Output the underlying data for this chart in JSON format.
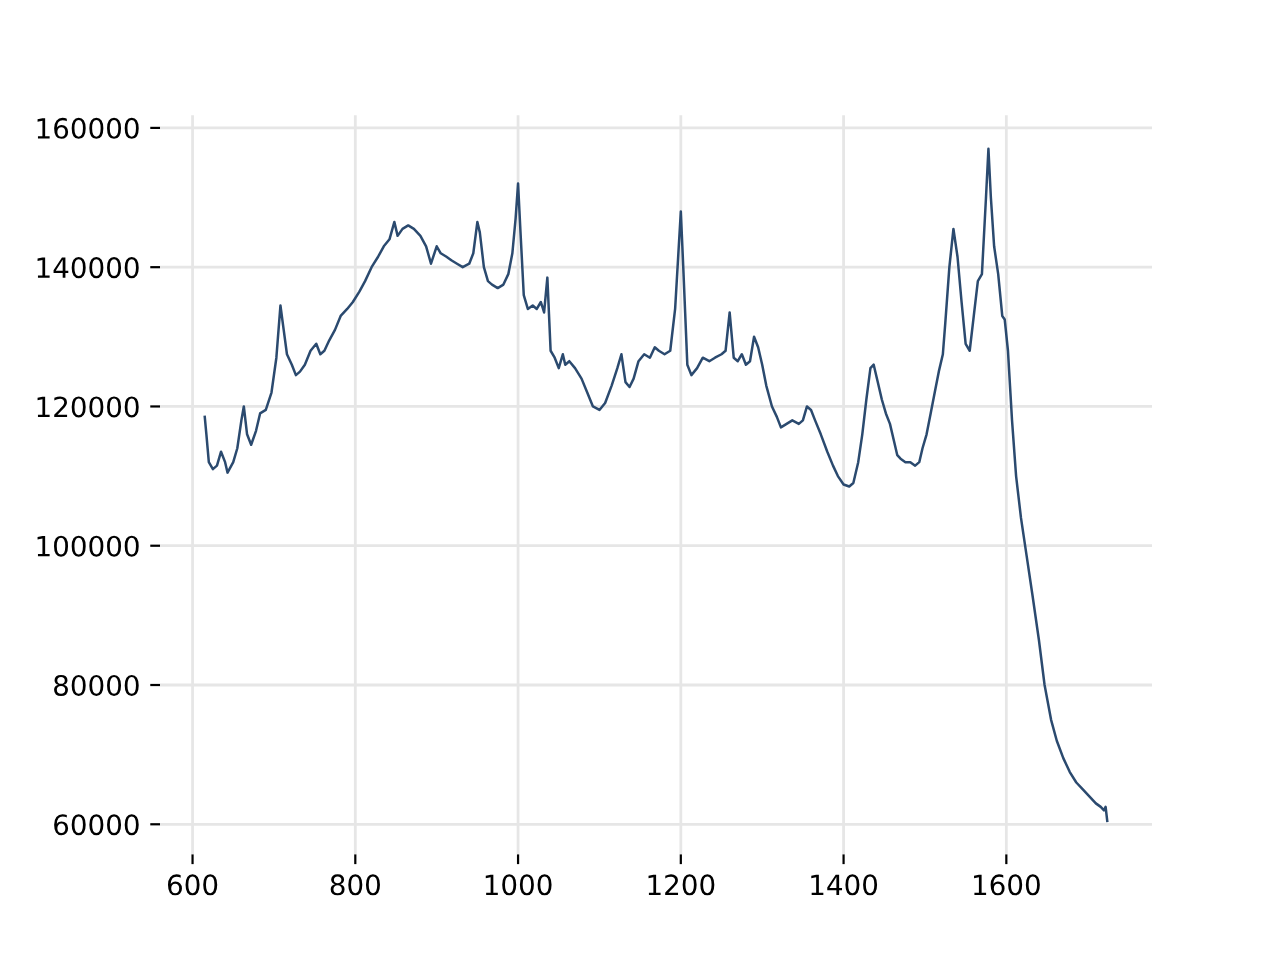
{
  "chart_data": {
    "type": "line",
    "x": [
      615,
      617,
      620,
      625,
      630,
      635,
      640,
      643,
      650,
      655,
      660,
      663,
      667,
      672,
      678,
      683,
      690,
      697,
      703,
      708,
      712,
      716,
      722,
      727,
      732,
      738,
      745,
      752,
      757,
      762,
      768,
      775,
      782,
      790,
      797,
      805,
      812,
      820,
      828,
      835,
      842,
      848,
      852,
      858,
      865,
      872,
      880,
      887,
      893,
      900,
      905,
      912,
      918,
      925,
      932,
      940,
      945,
      950,
      953,
      958,
      963,
      968,
      975,
      982,
      988,
      993,
      997,
      1000,
      1003,
      1007,
      1012,
      1018,
      1023,
      1028,
      1032,
      1036,
      1040,
      1045,
      1050,
      1055,
      1058,
      1063,
      1070,
      1078,
      1085,
      1092,
      1100,
      1107,
      1115,
      1122,
      1127,
      1132,
      1137,
      1142,
      1148,
      1155,
      1162,
      1168,
      1173,
      1180,
      1187,
      1193,
      1197,
      1200,
      1203,
      1208,
      1213,
      1220,
      1227,
      1235,
      1242,
      1250,
      1255,
      1260,
      1265,
      1270,
      1275,
      1280,
      1285,
      1290,
      1295,
      1300,
      1305,
      1312,
      1318,
      1323,
      1330,
      1337,
      1345,
      1350,
      1355,
      1360,
      1365,
      1372,
      1380,
      1387,
      1393,
      1400,
      1407,
      1412,
      1418,
      1423,
      1428,
      1433,
      1437,
      1442,
      1447,
      1452,
      1457,
      1462,
      1466,
      1470,
      1476,
      1482,
      1488,
      1493,
      1497,
      1502,
      1507,
      1512,
      1517,
      1522,
      1525,
      1530,
      1535,
      1540,
      1545,
      1550,
      1555,
      1560,
      1565,
      1570,
      1575,
      1578,
      1581,
      1585,
      1590,
      1595,
      1598,
      1602,
      1607,
      1612,
      1618,
      1625,
      1632,
      1640,
      1647,
      1655,
      1662,
      1670,
      1678,
      1686,
      1694,
      1702,
      1710,
      1716,
      1720,
      1722,
      1724
    ],
    "series": [
      {
        "color": "#2b4a6f",
        "values": [
          118500,
          116000,
          112000,
          111000,
          111500,
          113500,
          112000,
          110500,
          112000,
          114000,
          118000,
          120000,
          116000,
          114500,
          116500,
          119000,
          119500,
          122000,
          127000,
          134500,
          131000,
          127500,
          126000,
          124500,
          125000,
          126000,
          128000,
          129000,
          127500,
          128000,
          129500,
          131000,
          133000,
          134000,
          135000,
          136500,
          138000,
          140000,
          141500,
          143000,
          144000,
          146500,
          144500,
          145500,
          146000,
          145500,
          144500,
          143000,
          140500,
          143000,
          142000,
          141500,
          141000,
          140500,
          140000,
          140500,
          142000,
          146500,
          145000,
          140000,
          138000,
          137500,
          137000,
          137500,
          139000,
          142000,
          147000,
          152000,
          145000,
          136000,
          134000,
          134500,
          134000,
          135000,
          133500,
          138500,
          128000,
          127000,
          125500,
          127500,
          126000,
          126500,
          125500,
          124000,
          122000,
          120000,
          119500,
          120500,
          123000,
          125500,
          127500,
          123500,
          122800,
          124000,
          126500,
          127500,
          127000,
          128500,
          128000,
          127500,
          128000,
          134000,
          142000,
          148000,
          140000,
          126000,
          124500,
          125500,
          127000,
          126500,
          127000,
          127500,
          128000,
          133500,
          127000,
          126500,
          127500,
          126000,
          126500,
          130000,
          128500,
          126000,
          123000,
          120000,
          118500,
          117000,
          117500,
          118000,
          117500,
          118000,
          120000,
          119500,
          118000,
          116000,
          113500,
          111500,
          110000,
          108800,
          108500,
          109000,
          112000,
          116000,
          121000,
          125500,
          126000,
          123500,
          121000,
          119000,
          117500,
          115000,
          113000,
          112500,
          112000,
          112000,
          111500,
          112000,
          114000,
          116000,
          119000,
          122000,
          125000,
          127500,
          132000,
          140000,
          145500,
          141500,
          135000,
          129000,
          128000,
          133000,
          138000,
          139000,
          150000,
          157000,
          150000,
          143000,
          139000,
          133000,
          132500,
          128000,
          118000,
          110000,
          104000,
          98500,
          93000,
          86500,
          80000,
          75000,
          72000,
          69500,
          67500,
          66000,
          65000,
          64000,
          63000,
          62500,
          62000,
          62500,
          60500
        ]
      }
    ],
    "xlim": [
      560,
      1779
    ],
    "ylim": [
      55675,
      161825
    ],
    "xticks": [
      600,
      800,
      1000,
      1200,
      1400,
      1600
    ],
    "yticks": [
      60000,
      80000,
      100000,
      120000,
      140000,
      160000
    ],
    "grid": true,
    "legend": false,
    "marker": "none",
    "line_style": "solid"
  }
}
